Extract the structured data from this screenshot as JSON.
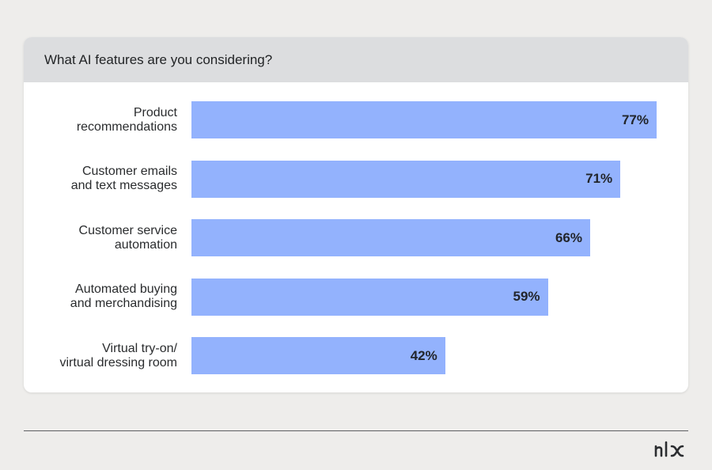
{
  "chart_data": {
    "type": "bar",
    "orientation": "horizontal",
    "title": "What AI features are you considering?",
    "categories": [
      "Product\nrecommendations",
      "Customer emails\nand text messages",
      "Customer service\nautomation",
      "Automated buying\nand merchandising",
      "Virtual try-on/\nvirtual dressing room"
    ],
    "values": [
      77,
      71,
      66,
      59,
      42
    ],
    "value_labels": [
      "77%",
      "71%",
      "66%",
      "59%",
      "42%"
    ],
    "unit": "%",
    "xlim": [
      0,
      77
    ],
    "grid": false,
    "bar_color": "#93b2fd"
  },
  "brand": {
    "logo_text": "nlx"
  }
}
